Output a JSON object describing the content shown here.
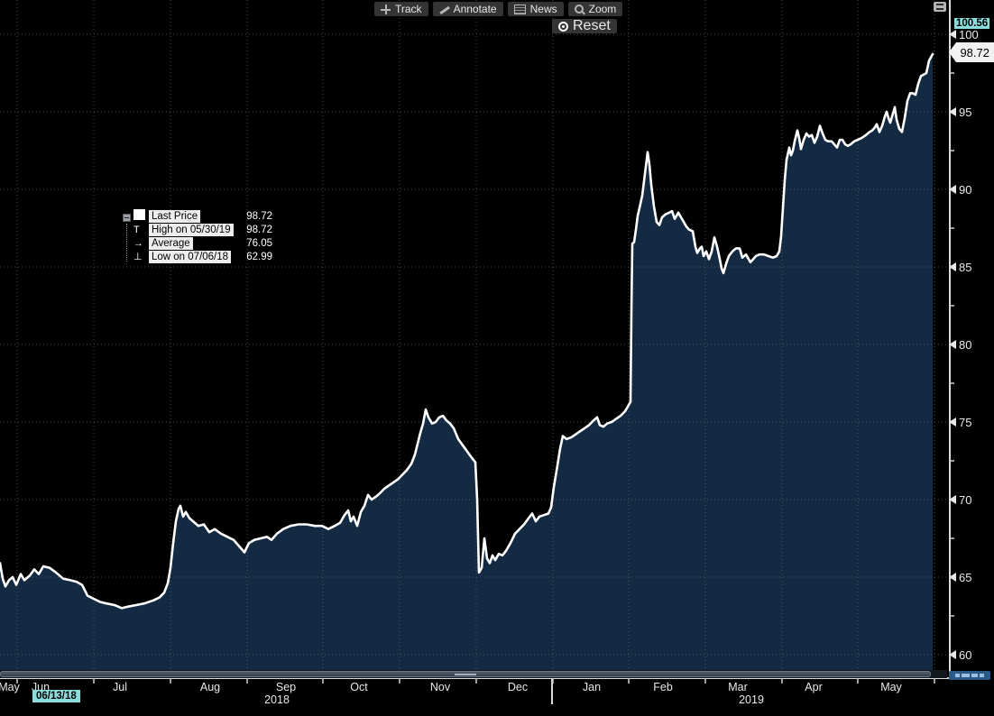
{
  "colors": {
    "background": "#000000",
    "area_fill": "#142a42",
    "price_line": "#ffffff",
    "accent_cyan": "#8bdcdc",
    "grid": "#4e6075",
    "axis": "#dcdcdc",
    "chip_bg": "#343434"
  },
  "toolbar": {
    "buttons": [
      {
        "label": "Track"
      },
      {
        "label": "Annotate"
      },
      {
        "label": "News"
      },
      {
        "label": "Zoom"
      }
    ],
    "reset_label": "Reset"
  },
  "legend": {
    "rows": [
      {
        "glyph": "",
        "label": "Last Price",
        "value": "98.72"
      },
      {
        "glyph": "T",
        "label": "High on 05/30/19",
        "value": "98.72"
      },
      {
        "glyph": "→",
        "label": "Average",
        "value": "76.05"
      },
      {
        "glyph": "⊥",
        "label": "Low on 07/06/18",
        "value": "62.99"
      }
    ]
  },
  "y_axis": {
    "max_marker": "100.56",
    "last_price_tag": "98.72",
    "ticks": [
      "100",
      "95",
      "90",
      "85",
      "80",
      "75",
      "70",
      "65",
      "60"
    ]
  },
  "x_axis": {
    "start_date": "06/13/18",
    "months": [
      {
        "label": "May",
        "x": 10
      },
      {
        "label": "Jun",
        "x": 45
      },
      {
        "label": "Jul",
        "x": 133
      },
      {
        "label": "Aug",
        "x": 233
      },
      {
        "label": "Sep",
        "x": 317
      },
      {
        "label": "Oct",
        "x": 398
      },
      {
        "label": "Nov",
        "x": 488
      },
      {
        "label": "Dec",
        "x": 574
      },
      {
        "label": "Jan",
        "x": 656
      },
      {
        "label": "Feb",
        "x": 735
      },
      {
        "label": "Mar",
        "x": 818
      },
      {
        "label": "Apr",
        "x": 902
      },
      {
        "label": "May",
        "x": 988
      }
    ],
    "years": [
      {
        "label": "2018",
        "x": 307
      },
      {
        "label": "2019",
        "x": 833
      }
    ],
    "month_boundaries": [
      19,
      104,
      189,
      274,
      358,
      443,
      528,
      613,
      697,
      782,
      867,
      951,
      1036
    ]
  },
  "chart_data": {
    "type": "area",
    "series_name": "Last Price",
    "ylim": [
      60,
      100
    ],
    "y_ticks": [
      60,
      65,
      70,
      75,
      80,
      85,
      90,
      95,
      100
    ],
    "x_range": [
      "May 2018",
      "May 2019"
    ],
    "stats": {
      "last_price": 98.72,
      "high": {
        "date": "05/30/19",
        "value": 98.72
      },
      "average": 76.05,
      "low": {
        "date": "07/06/18",
        "value": 62.99
      }
    },
    "x_unit": "px_from_left",
    "points": [
      [
        0,
        65.9
      ],
      [
        3,
        64.9
      ],
      [
        6,
        64.4
      ],
      [
        10,
        64.8
      ],
      [
        14,
        65.0
      ],
      [
        18,
        64.5
      ],
      [
        23,
        65.2
      ],
      [
        27,
        64.8
      ],
      [
        33,
        65.1
      ],
      [
        38,
        65.5
      ],
      [
        43,
        65.2
      ],
      [
        48,
        65.7
      ],
      [
        55,
        65.6
      ],
      [
        62,
        65.3
      ],
      [
        70,
        64.9
      ],
      [
        78,
        64.8
      ],
      [
        85,
        64.7
      ],
      [
        91,
        64.5
      ],
      [
        97,
        63.8
      ],
      [
        104,
        63.6
      ],
      [
        111,
        63.4
      ],
      [
        118,
        63.3
      ],
      [
        127,
        63.2
      ],
      [
        135,
        63.0
      ],
      [
        142,
        63.1
      ],
      [
        151,
        63.2
      ],
      [
        160,
        63.3
      ],
      [
        170,
        63.5
      ],
      [
        177,
        63.7
      ],
      [
        182,
        64.0
      ],
      [
        186,
        64.6
      ],
      [
        189,
        65.6
      ],
      [
        192,
        67.2
      ],
      [
        195,
        68.6
      ],
      [
        198,
        69.4
      ],
      [
        200,
        69.6
      ],
      [
        203,
        68.9
      ],
      [
        206,
        69.2
      ],
      [
        210,
        68.8
      ],
      [
        214,
        68.6
      ],
      [
        220,
        68.3
      ],
      [
        226,
        68.4
      ],
      [
        232,
        67.9
      ],
      [
        238,
        68.1
      ],
      [
        245,
        67.8
      ],
      [
        252,
        67.6
      ],
      [
        259,
        67.4
      ],
      [
        265,
        67.0
      ],
      [
        271,
        66.6
      ],
      [
        276,
        67.2
      ],
      [
        282,
        67.4
      ],
      [
        289,
        67.5
      ],
      [
        296,
        67.6
      ],
      [
        301,
        67.4
      ],
      [
        307,
        67.8
      ],
      [
        314,
        68.1
      ],
      [
        322,
        68.3
      ],
      [
        331,
        68.4
      ],
      [
        340,
        68.4
      ],
      [
        349,
        68.3
      ],
      [
        357,
        68.3
      ],
      [
        364,
        68.1
      ],
      [
        371,
        68.3
      ],
      [
        377,
        68.5
      ],
      [
        382,
        69.0
      ],
      [
        386,
        69.3
      ],
      [
        389,
        68.6
      ],
      [
        392,
        68.9
      ],
      [
        396,
        68.3
      ],
      [
        400,
        69.2
      ],
      [
        404,
        69.6
      ],
      [
        408,
        70.3
      ],
      [
        412,
        70.0
      ],
      [
        417,
        70.2
      ],
      [
        421,
        70.4
      ],
      [
        426,
        70.7
      ],
      [
        431,
        70.9
      ],
      [
        436,
        71.1
      ],
      [
        441,
        71.3
      ],
      [
        446,
        71.6
      ],
      [
        451,
        71.9
      ],
      [
        456,
        72.3
      ],
      [
        460,
        72.9
      ],
      [
        463,
        73.6
      ],
      [
        466,
        74.3
      ],
      [
        469,
        74.9
      ],
      [
        472,
        75.8
      ],
      [
        475,
        75.3
      ],
      [
        479,
        74.9
      ],
      [
        483,
        75.0
      ],
      [
        487,
        75.3
      ],
      [
        491,
        75.4
      ],
      [
        495,
        75.1
      ],
      [
        499,
        74.9
      ],
      [
        503,
        74.6
      ],
      [
        508,
        73.9
      ],
      [
        513,
        73.5
      ],
      [
        518,
        73.1
      ],
      [
        523,
        72.7
      ],
      [
        527,
        72.4
      ],
      [
        529,
        70.0
      ],
      [
        531,
        65.3
      ],
      [
        534,
        65.6
      ],
      [
        537,
        67.5
      ],
      [
        540,
        66.2
      ],
      [
        543,
        65.9
      ],
      [
        546,
        66.4
      ],
      [
        549,
        66.1
      ],
      [
        553,
        66.5
      ],
      [
        557,
        66.4
      ],
      [
        561,
        66.7
      ],
      [
        566,
        67.2
      ],
      [
        571,
        67.8
      ],
      [
        576,
        68.1
      ],
      [
        581,
        68.4
      ],
      [
        586,
        68.8
      ],
      [
        590,
        69.1
      ],
      [
        594,
        68.6
      ],
      [
        598,
        68.9
      ],
      [
        603,
        69.0
      ],
      [
        608,
        69.1
      ],
      [
        611,
        69.5
      ],
      [
        614,
        70.8
      ],
      [
        618,
        72.2
      ],
      [
        621,
        73.3
      ],
      [
        624,
        74.1
      ],
      [
        628,
        73.9
      ],
      [
        633,
        74.0
      ],
      [
        638,
        74.2
      ],
      [
        643,
        74.4
      ],
      [
        648,
        74.6
      ],
      [
        653,
        74.8
      ],
      [
        658,
        75.1
      ],
      [
        662,
        75.3
      ],
      [
        665,
        74.8
      ],
      [
        669,
        74.7
      ],
      [
        673,
        74.9
      ],
      [
        678,
        75.0
      ],
      [
        683,
        75.2
      ],
      [
        688,
        75.4
      ],
      [
        693,
        75.7
      ],
      [
        697,
        76.1
      ],
      [
        699,
        76.3
      ],
      [
        700,
        82.0
      ],
      [
        701,
        86.5
      ],
      [
        703,
        86.6
      ],
      [
        705,
        87.4
      ],
      [
        707,
        88.3
      ],
      [
        709,
        88.8
      ],
      [
        712,
        89.6
      ],
      [
        715,
        91.0
      ],
      [
        718,
        92.4
      ],
      [
        720,
        91.6
      ],
      [
        722,
        90.3
      ],
      [
        725,
        88.9
      ],
      [
        728,
        87.9
      ],
      [
        731,
        87.7
      ],
      [
        734,
        88.2
      ],
      [
        738,
        88.4
      ],
      [
        742,
        88.5
      ],
      [
        745,
        88.6
      ],
      [
        748,
        88.1
      ],
      [
        752,
        88.5
      ],
      [
        755,
        88.2
      ],
      [
        758,
        87.9
      ],
      [
        761,
        87.6
      ],
      [
        764,
        87.4
      ],
      [
        768,
        87.3
      ],
      [
        771,
        86.3
      ],
      [
        773,
        85.9
      ],
      [
        776,
        86.2
      ],
      [
        778,
        86.3
      ],
      [
        780,
        85.7
      ],
      [
        783,
        86.0
      ],
      [
        786,
        85.5
      ],
      [
        789,
        86.0
      ],
      [
        792,
        86.9
      ],
      [
        795,
        86.3
      ],
      [
        798,
        85.5
      ],
      [
        800,
        84.9
      ],
      [
        802,
        84.6
      ],
      [
        805,
        85.2
      ],
      [
        808,
        85.7
      ],
      [
        812,
        86.0
      ],
      [
        816,
        86.2
      ],
      [
        820,
        86.2
      ],
      [
        823,
        85.6
      ],
      [
        827,
        85.8
      ],
      [
        830,
        85.5
      ],
      [
        832,
        85.3
      ],
      [
        835,
        85.5
      ],
      [
        838,
        85.7
      ],
      [
        842,
        85.8
      ],
      [
        847,
        85.8
      ],
      [
        852,
        85.7
      ],
      [
        857,
        85.6
      ],
      [
        861,
        85.7
      ],
      [
        864,
        86.0
      ],
      [
        866,
        87.0
      ],
      [
        868,
        88.8
      ],
      [
        870,
        90.6
      ],
      [
        872,
        91.9
      ],
      [
        875,
        92.7
      ],
      [
        877,
        92.2
      ],
      [
        879,
        92.5
      ],
      [
        881,
        93.1
      ],
      [
        884,
        93.8
      ],
      [
        886,
        93.3
      ],
      [
        888,
        92.6
      ],
      [
        891,
        93.2
      ],
      [
        894,
        93.6
      ],
      [
        897,
        93.4
      ],
      [
        900,
        93.5
      ],
      [
        903,
        93.0
      ],
      [
        906,
        93.4
      ],
      [
        909,
        94.1
      ],
      [
        912,
        93.6
      ],
      [
        915,
        93.2
      ],
      [
        918,
        93.1
      ],
      [
        922,
        93.1
      ],
      [
        925,
        92.9
      ],
      [
        928,
        92.7
      ],
      [
        931,
        93.2
      ],
      [
        934,
        93.2
      ],
      [
        937,
        92.9
      ],
      [
        940,
        92.8
      ],
      [
        943,
        92.9
      ],
      [
        947,
        93.1
      ],
      [
        951,
        93.2
      ],
      [
        955,
        93.3
      ],
      [
        960,
        93.5
      ],
      [
        964,
        93.7
      ],
      [
        967,
        93.8
      ],
      [
        970,
        94.0
      ],
      [
        972,
        94.2
      ],
      [
        975,
        93.7
      ],
      [
        978,
        94.1
      ],
      [
        981,
        94.7
      ],
      [
        983,
        95.0
      ],
      [
        985,
        94.6
      ],
      [
        987,
        94.3
      ],
      [
        990,
        94.9
      ],
      [
        992,
        95.3
      ],
      [
        994,
        94.5
      ],
      [
        997,
        93.9
      ],
      [
        1000,
        93.7
      ],
      [
        1003,
        94.6
      ],
      [
        1006,
        95.7
      ],
      [
        1009,
        96.2
      ],
      [
        1012,
        96.2
      ],
      [
        1015,
        96.1
      ],
      [
        1018,
        96.8
      ],
      [
        1021,
        97.3
      ],
      [
        1024,
        97.4
      ],
      [
        1027,
        97.5
      ],
      [
        1030,
        98.3
      ],
      [
        1034,
        98.72
      ]
    ]
  }
}
